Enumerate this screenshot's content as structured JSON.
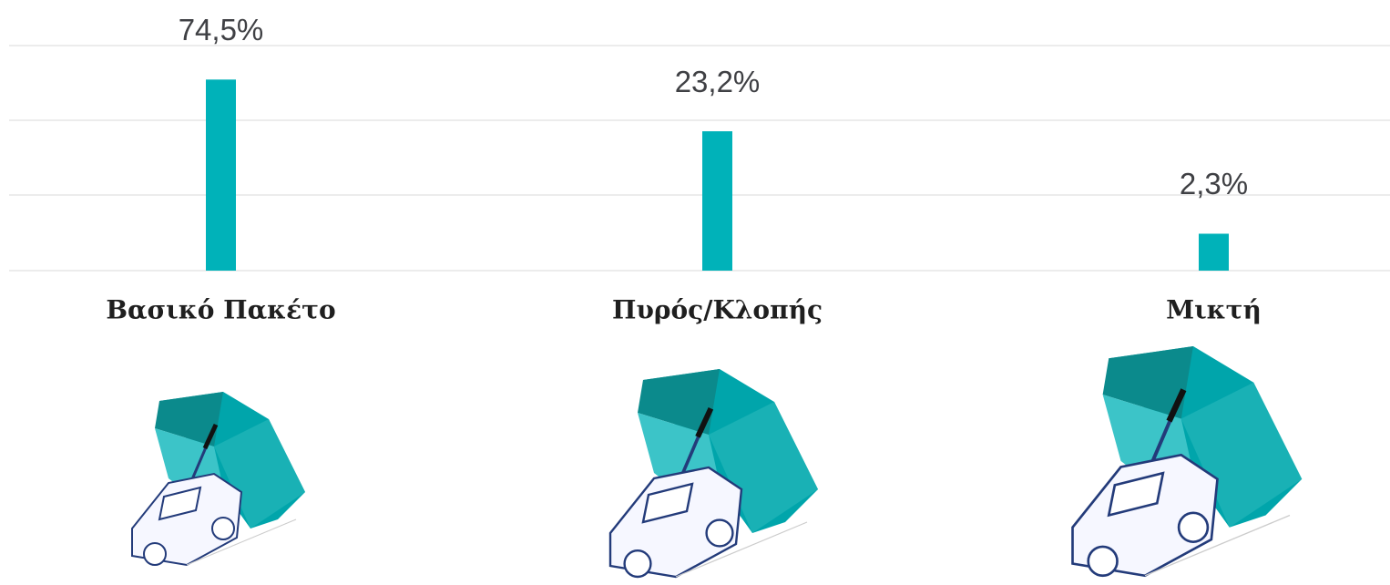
{
  "chart_data": {
    "type": "bar",
    "categories": [
      "Βασικό Πακέτο",
      "Πυρός/Κλοπής",
      "Μικτή"
    ],
    "values": [
      74.5,
      23.2,
      2.3
    ],
    "value_labels": [
      "74,5%",
      "23,2%",
      "2,3%"
    ],
    "color": "#00b2b9",
    "log_scale": true,
    "ylim": [
      1,
      100
    ]
  }
}
